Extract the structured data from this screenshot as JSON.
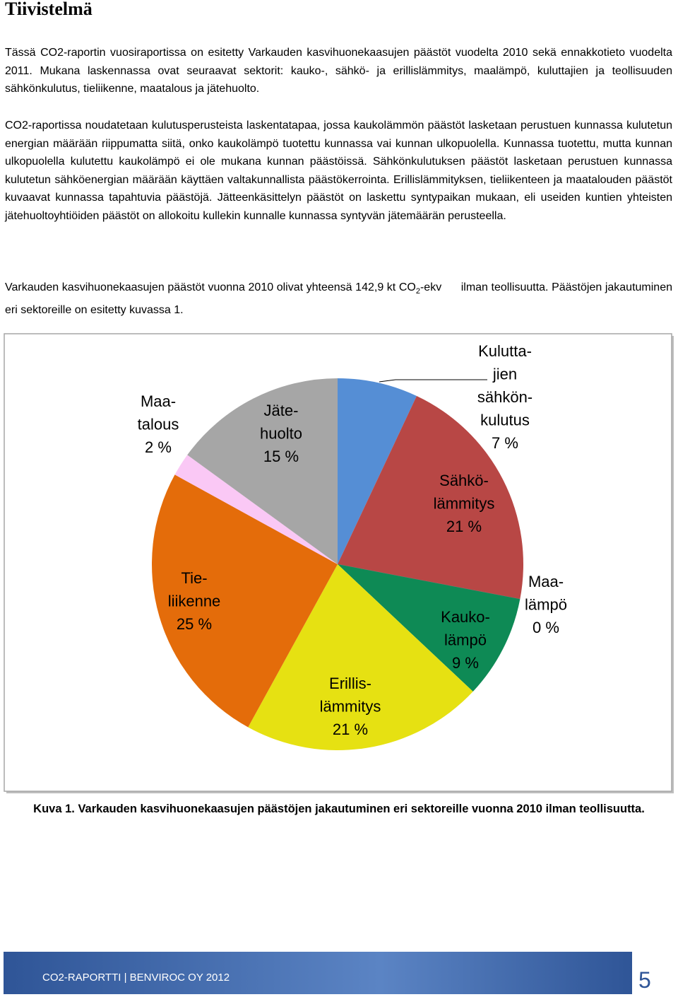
{
  "header": {
    "title": "Tiivistelmä"
  },
  "paragraphs": [
    "Tässä CO2-raportin vuosiraportissa on esitetty Varkauden kasvihuonekaasujen päästöt vuodelta 2010 sekä ennakkotieto vuodelta 2011. Mukana laskennassa ovat seuraavat sektorit: kauko-, sähkö- ja erillislämmitys, maalämpö, kuluttajien ja teollisuuden sähkönkulutus, tieliikenne, maatalous ja jätehuolto.",
    "CO2-raportissa noudatetaan kulutusperusteista laskentatapaa, jossa kaukolämmön päästöt lasketaan perustuen kunnassa kulutetun energian määrään riippumatta siitä, onko kaukolämpö tuotettu kunnassa vai kunnan ulkopuolella. Kunnassa tuotettu, mutta kunnan ulkopuolella kulutettu kaukolämpö ei ole mukana kunnan päästöissä. Sähkönkulutuksen päästöt lasketaan perustuen kunnassa kulutetun sähköenergian määrään käyttäen valtakunnallista päästökerrointa. Erillislämmityksen, tieliikenteen ja maatalouden päästöt kuvaavat kunnassa tapahtuvia päästöjä. Jätteenkäsittelyn päästöt on laskettu syntypaikan mukaan, eli useiden kuntien yhteisten jätehuoltoyhtiöiden päästöt on allokoitu kullekin kunnalle kunnassa syntyvän jätemäärän perusteella."
  ],
  "summary": [
    "Varkauden kasvihuonekaasujen päästöt vuonna 2010 olivat yhteensä 142,9 kt CO",
    "2",
    "-ekv      ilman teollisuutta. Päästöjen jakautuminen eri sektoreille on esitetty kuvassa 1."
  ],
  "chart_data": {
    "type": "pie",
    "categories": [
      "Kulutta-\njien\nsähkön-\nkulutus",
      "Sähkö-\nlämmitys",
      "Maa-\nlämpö",
      "Kauko-\nlämpö",
      "Erillis-\nlämmitys",
      "Tie-\nliikenne",
      "Maa-\ntalous",
      "Jäte-\nhuolto"
    ],
    "values": [
      7,
      21,
      0,
      9,
      21,
      25,
      2,
      15
    ],
    "value_labels": [
      "7 %",
      "21 %",
      "0 %",
      "9 %",
      "21 %",
      "25 %",
      "2 %",
      "15 %"
    ],
    "colors": [
      "#558ed5",
      "#b84745",
      "#7f7f7f",
      "#0e8a55",
      "#e6e112",
      "#e46c0a",
      "#fac8f5",
      "#a6a6a6"
    ]
  },
  "caption": "Kuva 1. Varkauden kasvihuonekaasujen päästöjen jakautuminen eri sektoreille vuonna 2010   ilman teollisuutta.",
  "footer": {
    "text": "CO2-RAPORTTI | BENVIROC OY 2012",
    "page": "5"
  }
}
